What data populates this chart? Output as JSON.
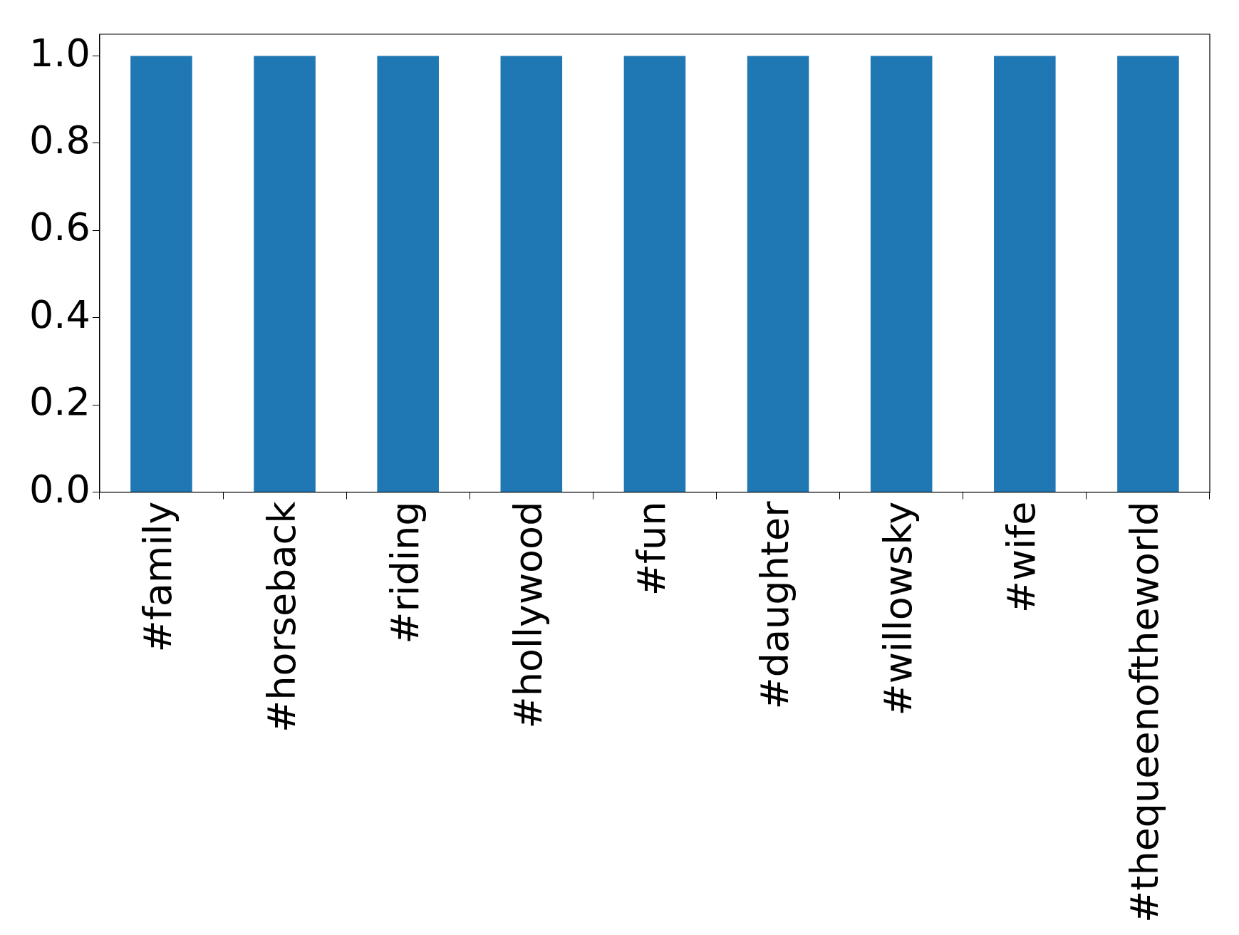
{
  "chart_data": {
    "type": "bar",
    "categories": [
      "#family",
      "#horseback",
      "#riding",
      "#hollywood",
      "#fun",
      "#daughter",
      "#willowsky",
      "#wife",
      "#thequeenoftheworld"
    ],
    "values": [
      1,
      1,
      1,
      1,
      1,
      1,
      1,
      1,
      1
    ],
    "color": "#1f77b4",
    "ylim": [
      0,
      1.05
    ],
    "yticks": [
      {
        "value": 0,
        "label": "0.0"
      },
      0.2,
      0.4,
      0.6,
      0.8,
      {
        "value": 1,
        "label": "1.0"
      }
    ],
    "grid": false,
    "legend": false
  }
}
